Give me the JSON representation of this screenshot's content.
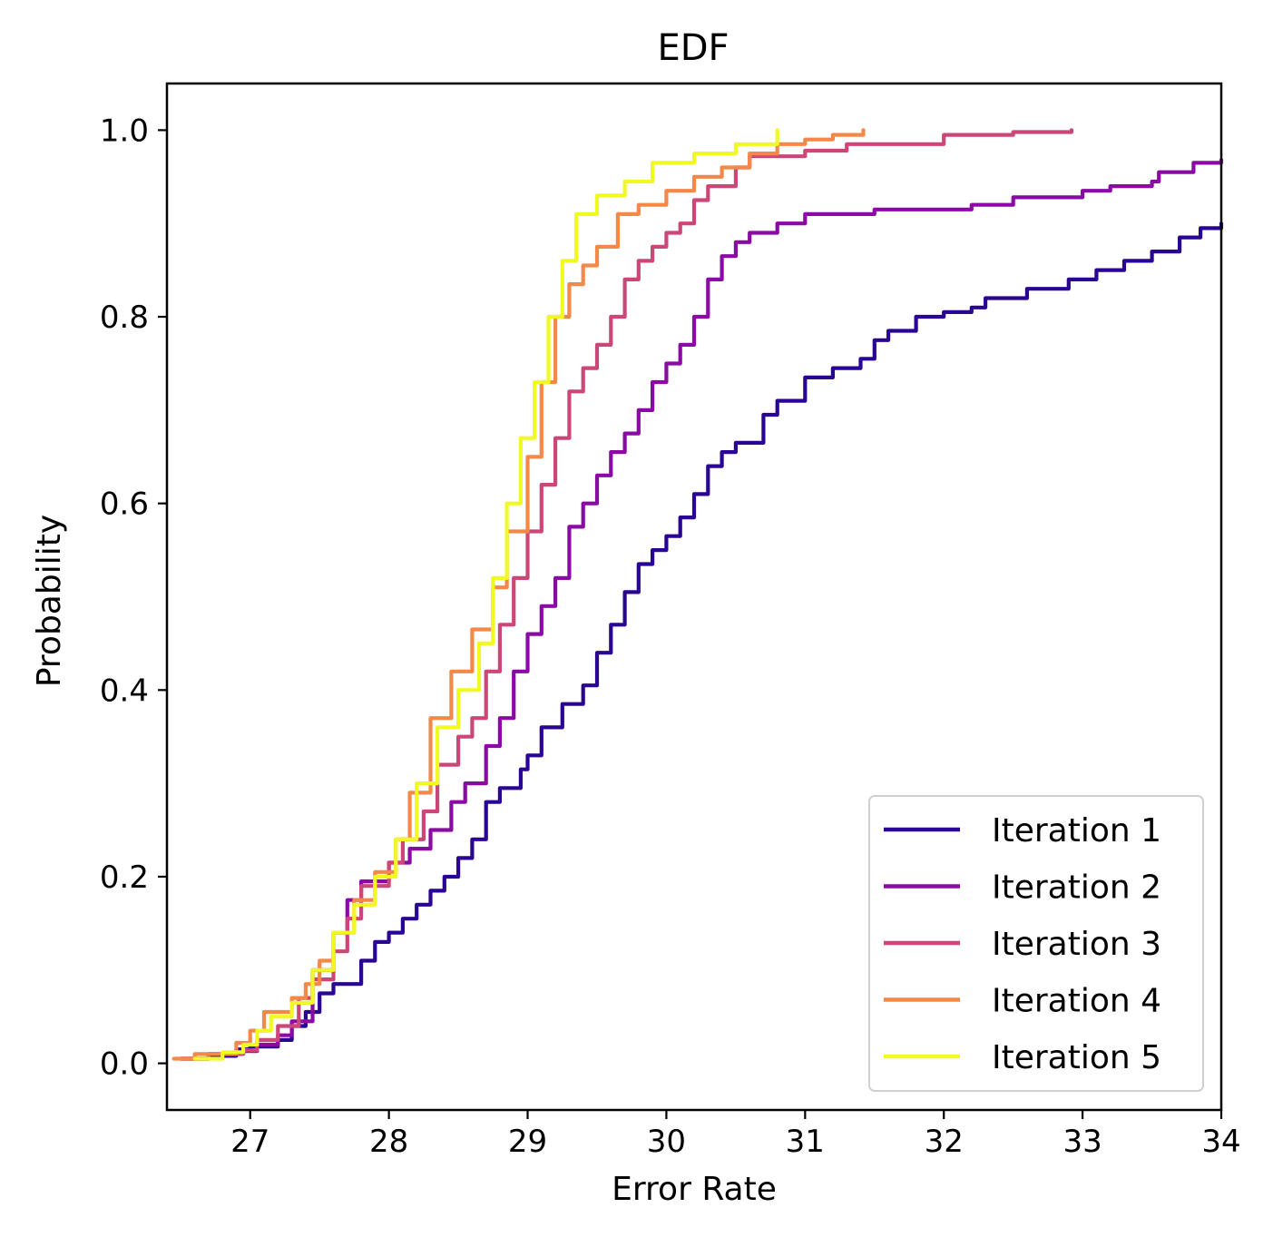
{
  "chart_data": {
    "type": "line",
    "title": "EDF",
    "xlabel": "Error Rate",
    "ylabel": "Probability",
    "xlim": [
      26.4,
      34.0
    ],
    "ylim": [
      -0.05,
      1.05
    ],
    "xticks": [
      "27",
      "28",
      "29",
      "30",
      "31",
      "32",
      "33",
      "34"
    ],
    "yticks": [
      "0.0",
      "0.2",
      "0.4",
      "0.6",
      "0.8",
      "1.0"
    ],
    "grid": false,
    "legend_position": "lower-right",
    "series": [
      {
        "name": "Iteration 1",
        "color": "#2a0593",
        "points": [
          [
            26.5,
            0.005
          ],
          [
            26.7,
            0.008
          ],
          [
            26.9,
            0.015
          ],
          [
            27.0,
            0.018
          ],
          [
            27.2,
            0.025
          ],
          [
            27.3,
            0.04
          ],
          [
            27.4,
            0.055
          ],
          [
            27.5,
            0.075
          ],
          [
            27.6,
            0.085
          ],
          [
            27.8,
            0.11
          ],
          [
            27.9,
            0.13
          ],
          [
            28.0,
            0.14
          ],
          [
            28.1,
            0.155
          ],
          [
            28.2,
            0.17
          ],
          [
            28.3,
            0.185
          ],
          [
            28.4,
            0.2
          ],
          [
            28.5,
            0.22
          ],
          [
            28.6,
            0.24
          ],
          [
            28.7,
            0.28
          ],
          [
            28.8,
            0.295
          ],
          [
            28.95,
            0.315
          ],
          [
            29.0,
            0.33
          ],
          [
            29.1,
            0.36
          ],
          [
            29.25,
            0.385
          ],
          [
            29.4,
            0.405
          ],
          [
            29.5,
            0.44
          ],
          [
            29.6,
            0.47
          ],
          [
            29.7,
            0.505
          ],
          [
            29.8,
            0.535
          ],
          [
            29.9,
            0.55
          ],
          [
            30.0,
            0.565
          ],
          [
            30.1,
            0.585
          ],
          [
            30.2,
            0.61
          ],
          [
            30.3,
            0.64
          ],
          [
            30.4,
            0.655
          ],
          [
            30.5,
            0.665
          ],
          [
            30.7,
            0.695
          ],
          [
            30.8,
            0.71
          ],
          [
            31.0,
            0.735
          ],
          [
            31.2,
            0.745
          ],
          [
            31.4,
            0.755
          ],
          [
            31.5,
            0.775
          ],
          [
            31.6,
            0.785
          ],
          [
            31.8,
            0.8
          ],
          [
            32.0,
            0.805
          ],
          [
            32.2,
            0.81
          ],
          [
            32.3,
            0.82
          ],
          [
            32.6,
            0.83
          ],
          [
            32.9,
            0.84
          ],
          [
            33.1,
            0.85
          ],
          [
            33.3,
            0.86
          ],
          [
            33.5,
            0.87
          ],
          [
            33.7,
            0.885
          ],
          [
            33.85,
            0.895
          ],
          [
            34.0,
            0.9
          ]
        ]
      },
      {
        "name": "Iteration 2",
        "color": "#8b0aa5",
        "points": [
          [
            26.5,
            0.005
          ],
          [
            26.7,
            0.01
          ],
          [
            26.95,
            0.013
          ],
          [
            27.05,
            0.02
          ],
          [
            27.2,
            0.03
          ],
          [
            27.3,
            0.045
          ],
          [
            27.45,
            0.1
          ],
          [
            27.6,
            0.14
          ],
          [
            27.7,
            0.175
          ],
          [
            27.8,
            0.195
          ],
          [
            28.0,
            0.215
          ],
          [
            28.15,
            0.23
          ],
          [
            28.3,
            0.25
          ],
          [
            28.45,
            0.28
          ],
          [
            28.55,
            0.3
          ],
          [
            28.7,
            0.34
          ],
          [
            28.8,
            0.37
          ],
          [
            28.9,
            0.42
          ],
          [
            29.0,
            0.46
          ],
          [
            29.1,
            0.49
          ],
          [
            29.2,
            0.52
          ],
          [
            29.3,
            0.575
          ],
          [
            29.4,
            0.6
          ],
          [
            29.5,
            0.63
          ],
          [
            29.6,
            0.655
          ],
          [
            29.7,
            0.675
          ],
          [
            29.8,
            0.7
          ],
          [
            29.9,
            0.73
          ],
          [
            30.0,
            0.75
          ],
          [
            30.1,
            0.77
          ],
          [
            30.2,
            0.8
          ],
          [
            30.3,
            0.84
          ],
          [
            30.4,
            0.865
          ],
          [
            30.5,
            0.88
          ],
          [
            30.6,
            0.89
          ],
          [
            30.8,
            0.9
          ],
          [
            31.0,
            0.91
          ],
          [
            31.5,
            0.915
          ],
          [
            32.2,
            0.92
          ],
          [
            32.5,
            0.928
          ],
          [
            33.0,
            0.935
          ],
          [
            33.2,
            0.94
          ],
          [
            33.5,
            0.945
          ],
          [
            33.55,
            0.955
          ],
          [
            33.8,
            0.965
          ],
          [
            34.0,
            0.968
          ]
        ]
      },
      {
        "name": "Iteration 3",
        "color": "#cc4778",
        "points": [
          [
            26.5,
            0.005
          ],
          [
            26.7,
            0.01
          ],
          [
            26.95,
            0.014
          ],
          [
            27.05,
            0.025
          ],
          [
            27.2,
            0.04
          ],
          [
            27.35,
            0.07
          ],
          [
            27.45,
            0.09
          ],
          [
            27.6,
            0.12
          ],
          [
            27.7,
            0.155
          ],
          [
            27.8,
            0.19
          ],
          [
            28.0,
            0.215
          ],
          [
            28.1,
            0.24
          ],
          [
            28.25,
            0.27
          ],
          [
            28.35,
            0.32
          ],
          [
            28.5,
            0.35
          ],
          [
            28.6,
            0.37
          ],
          [
            28.7,
            0.42
          ],
          [
            28.8,
            0.47
          ],
          [
            28.9,
            0.52
          ],
          [
            29.0,
            0.57
          ],
          [
            29.1,
            0.62
          ],
          [
            29.2,
            0.67
          ],
          [
            29.3,
            0.72
          ],
          [
            29.4,
            0.745
          ],
          [
            29.5,
            0.77
          ],
          [
            29.6,
            0.8
          ],
          [
            29.7,
            0.84
          ],
          [
            29.8,
            0.86
          ],
          [
            29.9,
            0.875
          ],
          [
            30.0,
            0.89
          ],
          [
            30.1,
            0.9
          ],
          [
            30.2,
            0.925
          ],
          [
            30.3,
            0.94
          ],
          [
            30.5,
            0.96
          ],
          [
            30.6,
            0.972
          ],
          [
            31.0,
            0.978
          ],
          [
            31.3,
            0.985
          ],
          [
            32.0,
            0.995
          ],
          [
            32.5,
            0.998
          ],
          [
            32.92,
            1.0
          ]
        ]
      },
      {
        "name": "Iteration 4",
        "color": "#f48849",
        "points": [
          [
            26.45,
            0.005
          ],
          [
            26.6,
            0.01
          ],
          [
            26.9,
            0.022
          ],
          [
            27.0,
            0.035
          ],
          [
            27.1,
            0.055
          ],
          [
            27.3,
            0.07
          ],
          [
            27.4,
            0.085
          ],
          [
            27.5,
            0.11
          ],
          [
            27.6,
            0.14
          ],
          [
            27.75,
            0.175
          ],
          [
            27.9,
            0.205
          ],
          [
            28.05,
            0.24
          ],
          [
            28.15,
            0.29
          ],
          [
            28.3,
            0.37
          ],
          [
            28.45,
            0.42
          ],
          [
            28.6,
            0.465
          ],
          [
            28.75,
            0.51
          ],
          [
            28.85,
            0.57
          ],
          [
            29.0,
            0.65
          ],
          [
            29.1,
            0.73
          ],
          [
            29.2,
            0.8
          ],
          [
            29.3,
            0.835
          ],
          [
            29.4,
            0.855
          ],
          [
            29.5,
            0.875
          ],
          [
            29.65,
            0.91
          ],
          [
            29.8,
            0.92
          ],
          [
            30.0,
            0.935
          ],
          [
            30.2,
            0.95
          ],
          [
            30.4,
            0.96
          ],
          [
            30.6,
            0.975
          ],
          [
            30.8,
            0.985
          ],
          [
            31.0,
            0.99
          ],
          [
            31.2,
            0.995
          ],
          [
            31.42,
            1.0
          ]
        ]
      },
      {
        "name": "Iteration 5",
        "color": "#f0f921",
        "points": [
          [
            26.6,
            0.005
          ],
          [
            26.8,
            0.012
          ],
          [
            26.95,
            0.02
          ],
          [
            27.05,
            0.035
          ],
          [
            27.15,
            0.05
          ],
          [
            27.3,
            0.065
          ],
          [
            27.45,
            0.1
          ],
          [
            27.6,
            0.14
          ],
          [
            27.75,
            0.17
          ],
          [
            27.9,
            0.2
          ],
          [
            28.05,
            0.24
          ],
          [
            28.2,
            0.3
          ],
          [
            28.35,
            0.36
          ],
          [
            28.5,
            0.4
          ],
          [
            28.65,
            0.45
          ],
          [
            28.75,
            0.52
          ],
          [
            28.85,
            0.6
          ],
          [
            28.95,
            0.67
          ],
          [
            29.05,
            0.73
          ],
          [
            29.15,
            0.8
          ],
          [
            29.25,
            0.86
          ],
          [
            29.35,
            0.91
          ],
          [
            29.5,
            0.93
          ],
          [
            29.7,
            0.945
          ],
          [
            29.9,
            0.965
          ],
          [
            30.2,
            0.975
          ],
          [
            30.5,
            0.985
          ],
          [
            30.8,
            1.0
          ]
        ]
      }
    ]
  }
}
